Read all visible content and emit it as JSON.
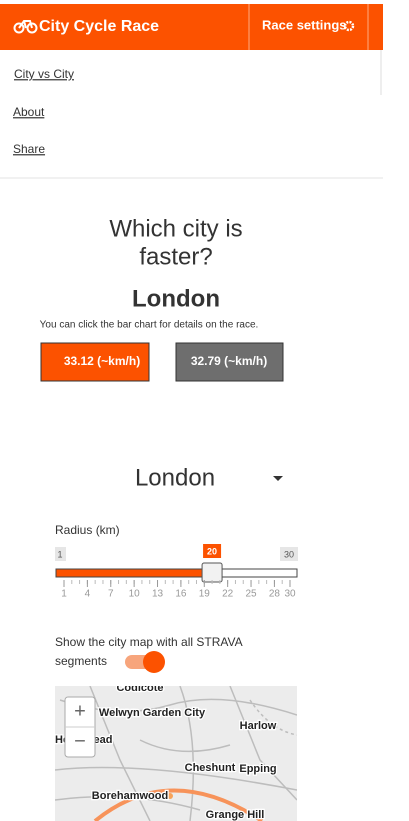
{
  "header": {
    "title": "City Cycle Race",
    "settings": "Race settings"
  },
  "menu": [
    "City vs City",
    "About",
    "Share"
  ],
  "main": {
    "question_lines": [
      "Which city is",
      "faster?"
    ],
    "winner": "London",
    "hint": "You can click the bar chart for details on the race.",
    "results": [
      {
        "label": "33.12 (~km/h)"
      },
      {
        "label": "32.79 (~km/h)"
      }
    ]
  },
  "controls": {
    "city": "London",
    "radius": {
      "label": "Radius (km)",
      "min": 1,
      "max": 30,
      "value": 20,
      "ticks": [
        1,
        4,
        7,
        10,
        13,
        16,
        19,
        22,
        25,
        28,
        30
      ]
    },
    "toggle_lines": [
      "Show the city map with all STRAVA",
      "segments"
    ]
  },
  "map": {
    "labels": [
      "Codicote",
      "Welwyn Garden City",
      "Harlow",
      "He",
      "ead",
      "Cheshunt",
      "Epping",
      "Borehamwood",
      "Grange Hill"
    ],
    "zoom_in": "+",
    "zoom_out": "−"
  }
}
